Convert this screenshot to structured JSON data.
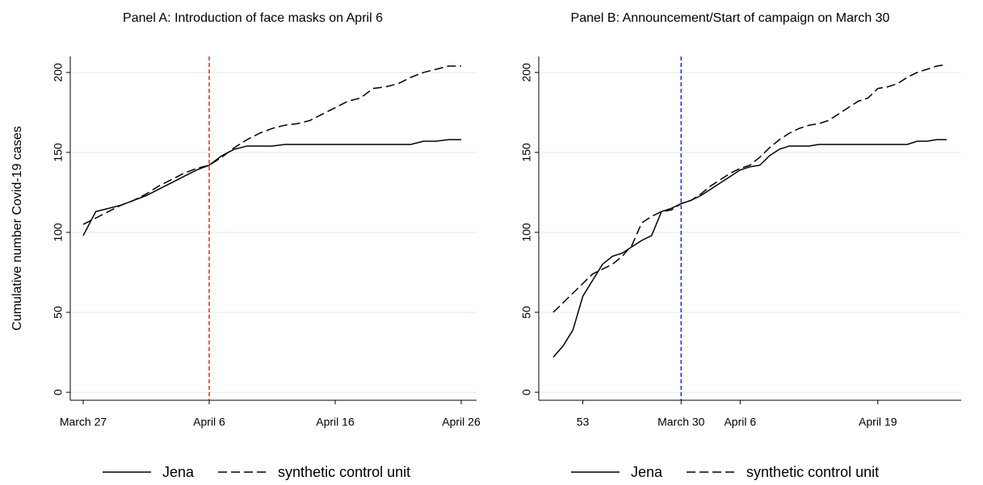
{
  "chart_data": [
    {
      "type": "line",
      "title": "Panel A: Introduction of face masks on April 6",
      "y_label": "Cumulative number Covid-19 cases",
      "categories": [
        "March 27",
        null,
        null,
        null,
        null,
        null,
        null,
        null,
        null,
        null,
        "April 6",
        null,
        null,
        null,
        null,
        null,
        null,
        null,
        null,
        null,
        "April 16",
        null,
        null,
        null,
        null,
        null,
        null,
        null,
        null,
        null,
        "April 26"
      ],
      "series": [
        {
          "name": "Jena",
          "color": "#000000",
          "dashed": false,
          "values": [
            98,
            113,
            115,
            117,
            120,
            123,
            127,
            131,
            135,
            139,
            142,
            148,
            152,
            154,
            154,
            154,
            155,
            155,
            155,
            155,
            155,
            155,
            155,
            155,
            155,
            155,
            155,
            157,
            157,
            158,
            158
          ]
        },
        {
          "name": "synthetic control unit",
          "color": "#000000",
          "dashed": true,
          "values": [
            105,
            109,
            113,
            117,
            120,
            124,
            129,
            133,
            137,
            140,
            142,
            147,
            153,
            158,
            162,
            165,
            167,
            168,
            170,
            174,
            178,
            182,
            184,
            190,
            191,
            193,
            197,
            200,
            202,
            204,
            204
          ]
        }
      ],
      "vline_category": "April 6",
      "vline_color": "#e8261f",
      "ylim": [
        -5,
        210
      ],
      "yticks": [
        0,
        50,
        100,
        150,
        200
      ],
      "grid": true
    },
    {
      "type": "line",
      "title": "Panel B: Announcement/Start of campaign on March 30",
      "categories": [
        null,
        null,
        null,
        "53",
        null,
        null,
        null,
        null,
        null,
        null,
        null,
        null,
        null,
        "March 30",
        null,
        null,
        null,
        null,
        null,
        "April 6",
        null,
        null,
        null,
        null,
        null,
        null,
        null,
        null,
        null,
        null,
        null,
        null,
        null,
        "April 19",
        null,
        null,
        null,
        null,
        null,
        null,
        null
      ],
      "series": [
        {
          "name": "Jena",
          "color": "#000000",
          "dashed": false,
          "values": [
            22,
            29,
            39,
            60,
            70,
            80,
            85,
            87,
            91,
            95,
            98,
            113,
            115,
            118,
            120,
            123,
            127,
            131,
            135,
            139,
            141,
            142,
            148,
            152,
            154,
            154,
            154,
            155,
            155,
            155,
            155,
            155,
            155,
            155,
            155,
            155,
            155,
            157,
            157,
            158,
            158
          ]
        },
        {
          "name": "synthetic control unit",
          "color": "#000000",
          "dashed": true,
          "values": [
            50,
            56,
            62,
            68,
            74,
            77,
            80,
            85,
            92,
            106,
            110,
            113,
            114,
            118,
            120,
            124,
            129,
            133,
            137,
            140,
            142,
            147,
            153,
            158,
            162,
            165,
            167,
            168,
            170,
            174,
            178,
            182,
            184,
            190,
            191,
            193,
            197,
            200,
            202,
            204,
            205
          ]
        }
      ],
      "vline_category": "March 30",
      "vline_color": "#1f2ee8",
      "ylim": [
        -5,
        210
      ],
      "yticks": [
        0,
        50,
        100,
        150,
        200
      ],
      "grid": true
    }
  ]
}
